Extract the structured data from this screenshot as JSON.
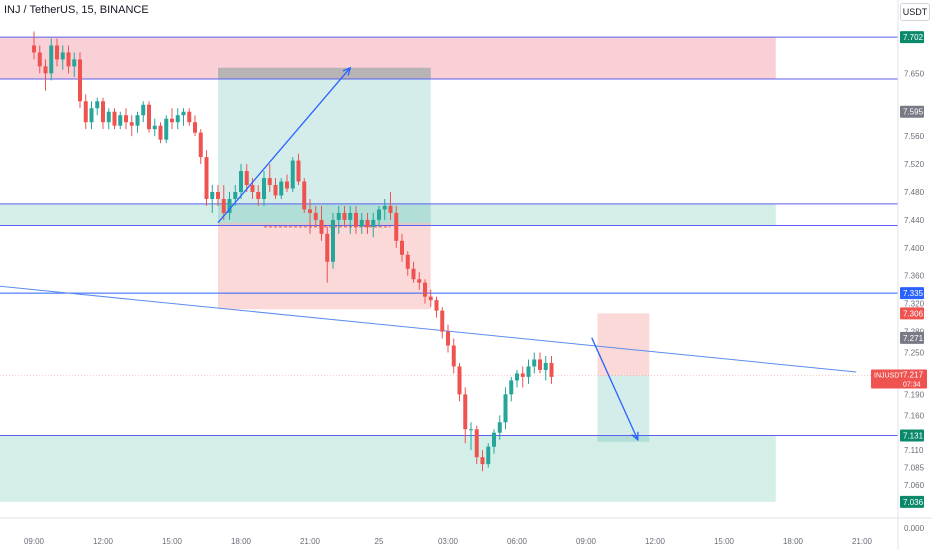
{
  "header": {
    "title": "INJ / TetherUS, 15, BINANCE",
    "currency_button": "USDT"
  },
  "colors": {
    "up": "#26a69a",
    "down": "#ef5350",
    "blue": "#2962ff",
    "supply_zone": "#f8d0d6",
    "demand_zone": "#d4eee8"
  },
  "chart_data": {
    "type": "candlestick",
    "symbol_label": "INJUSDT",
    "ylim": [
      7.03,
      7.715
    ],
    "y_ticks": [
      "7.650",
      "7.560",
      "7.520",
      "7.480",
      "7.440",
      "7.400",
      "7.360",
      "7.320",
      "7.280",
      "7.250",
      "7.190",
      "7.160",
      "7.110",
      "7.085",
      "7.060"
    ],
    "y_ticks_below": [
      "0.000",
      "0.000"
    ],
    "x_ticks": [
      {
        "label": "09:00",
        "time": 0
      },
      {
        "label": "12:00",
        "time": 12
      },
      {
        "label": "15:00",
        "time": 24
      },
      {
        "label": "18:00",
        "time": 36
      },
      {
        "label": "21:00",
        "time": 48
      },
      {
        "label": "25",
        "time": 60
      },
      {
        "label": "03:00",
        "time": 72
      },
      {
        "label": "06:00",
        "time": 84
      },
      {
        "label": "09:00",
        "time": 96
      },
      {
        "label": "12:00",
        "time": 108
      },
      {
        "label": "15:00",
        "time": 120
      },
      {
        "label": "18:00",
        "time": 132
      },
      {
        "label": "21:00",
        "time": 144
      }
    ],
    "price_labels": [
      {
        "text": "7.702",
        "value": 7.702,
        "color": "#0b8a6b"
      },
      {
        "text": "7.595",
        "value": 7.595,
        "color": "#787b86"
      },
      {
        "text": "7.335",
        "value": 7.335,
        "color": "#2962ff"
      },
      {
        "text": "7.306",
        "value": 7.306,
        "color": "#ef5350"
      },
      {
        "text": "7.271",
        "value": 7.271,
        "color": "#787b86"
      },
      {
        "text": "7.131",
        "value": 7.131,
        "color": "#0b8a6b"
      },
      {
        "text": "7.036",
        "value": 7.036,
        "color": "#0b8a6b"
      }
    ],
    "last_price": {
      "symbol": "INJUSDT",
      "price": "7.217",
      "countdown": "07:34",
      "value": 7.217
    },
    "horizontal_lines": [
      7.702,
      7.642,
      7.463,
      7.432,
      7.335,
      7.131
    ],
    "zones": [
      {
        "type": "supply",
        "t1": -6,
        "t2": 129,
        "top": 7.702,
        "bottom": 7.642
      },
      {
        "type": "demand",
        "t1": -6,
        "t2": 129,
        "top": 7.463,
        "bottom": 7.432
      },
      {
        "type": "demand",
        "t1": -6,
        "t2": 129,
        "top": 7.131,
        "bottom": 7.036
      }
    ],
    "positions": [
      {
        "kind": "long",
        "t1": 32,
        "t2": 69,
        "entry": 7.436,
        "stop": 7.312,
        "target": 7.658
      },
      {
        "kind": "short",
        "t1": 98,
        "t2": 107,
        "entry": 7.217,
        "stop": 7.306,
        "target": 7.122
      }
    ],
    "trendline": {
      "t1": -6,
      "p1": 7.345,
      "t2": 143,
      "p2": 7.222
    },
    "arrows": [
      {
        "t1": 32,
        "p1": 7.436,
        "t2": 55,
        "p2": 7.658
      },
      {
        "t1": 97,
        "p1": 7.271,
        "t2": 105,
        "p2": 7.125
      }
    ],
    "entry_dash": {
      "t1": 40,
      "t2": 62,
      "value": 7.43
    },
    "candles": [
      [
        7.69,
        7.71,
        7.67,
        7.68
      ],
      [
        7.68,
        7.69,
        7.65,
        7.66
      ],
      [
        7.66,
        7.67,
        7.625,
        7.65
      ],
      [
        7.65,
        7.7,
        7.64,
        7.69
      ],
      [
        7.69,
        7.7,
        7.66,
        7.67
      ],
      [
        7.67,
        7.69,
        7.655,
        7.68
      ],
      [
        7.68,
        7.69,
        7.65,
        7.66
      ],
      [
        7.66,
        7.68,
        7.645,
        7.67
      ],
      [
        7.67,
        7.68,
        7.6,
        7.61
      ],
      [
        7.61,
        7.62,
        7.57,
        7.58
      ],
      [
        7.58,
        7.61,
        7.57,
        7.6
      ],
      [
        7.6,
        7.615,
        7.59,
        7.61
      ],
      [
        7.61,
        7.615,
        7.57,
        7.58
      ],
      [
        7.58,
        7.6,
        7.57,
        7.595
      ],
      [
        7.595,
        7.6,
        7.57,
        7.575
      ],
      [
        7.575,
        7.595,
        7.57,
        7.59
      ],
      [
        7.59,
        7.6,
        7.57,
        7.58
      ],
      [
        7.58,
        7.59,
        7.56,
        7.575
      ],
      [
        7.575,
        7.595,
        7.565,
        7.59
      ],
      [
        7.59,
        7.61,
        7.58,
        7.605
      ],
      [
        7.605,
        7.61,
        7.565,
        7.57
      ],
      [
        7.57,
        7.585,
        7.56,
        7.575
      ],
      [
        7.575,
        7.58,
        7.55,
        7.555
      ],
      [
        7.555,
        7.59,
        7.55,
        7.585
      ],
      [
        7.585,
        7.6,
        7.57,
        7.58
      ],
      [
        7.58,
        7.6,
        7.57,
        7.59
      ],
      [
        7.59,
        7.6,
        7.575,
        7.595
      ],
      [
        7.595,
        7.6,
        7.575,
        7.58
      ],
      [
        7.58,
        7.59,
        7.56,
        7.565
      ],
      [
        7.565,
        7.57,
        7.52,
        7.53
      ],
      [
        7.53,
        7.54,
        7.46,
        7.47
      ],
      [
        7.47,
        7.49,
        7.45,
        7.48
      ],
      [
        7.48,
        7.49,
        7.46,
        7.47
      ],
      [
        7.47,
        7.49,
        7.44,
        7.45
      ],
      [
        7.45,
        7.48,
        7.44,
        7.47
      ],
      [
        7.47,
        7.49,
        7.46,
        7.48
      ],
      [
        7.48,
        7.52,
        7.47,
        7.51
      ],
      [
        7.51,
        7.52,
        7.48,
        7.49
      ],
      [
        7.49,
        7.5,
        7.47,
        7.48
      ],
      [
        7.48,
        7.49,
        7.46,
        7.47
      ],
      [
        7.47,
        7.51,
        7.46,
        7.5
      ],
      [
        7.5,
        7.52,
        7.48,
        7.49
      ],
      [
        7.49,
        7.5,
        7.47,
        7.475
      ],
      [
        7.475,
        7.5,
        7.47,
        7.495
      ],
      [
        7.495,
        7.505,
        7.48,
        7.485
      ],
      [
        7.485,
        7.53,
        7.48,
        7.525
      ],
      [
        7.525,
        7.535,
        7.49,
        7.495
      ],
      [
        7.495,
        7.5,
        7.45,
        7.455
      ],
      [
        7.455,
        7.47,
        7.42,
        7.45
      ],
      [
        7.45,
        7.46,
        7.43,
        7.44
      ],
      [
        7.44,
        7.46,
        7.41,
        7.42
      ],
      [
        7.42,
        7.43,
        7.35,
        7.38
      ],
      [
        7.38,
        7.45,
        7.37,
        7.44
      ],
      [
        7.44,
        7.46,
        7.42,
        7.45
      ],
      [
        7.45,
        7.46,
        7.43,
        7.44
      ],
      [
        7.44,
        7.46,
        7.42,
        7.45
      ],
      [
        7.45,
        7.46,
        7.42,
        7.43
      ],
      [
        7.43,
        7.45,
        7.42,
        7.44
      ],
      [
        7.44,
        7.45,
        7.42,
        7.43
      ],
      [
        7.43,
        7.45,
        7.415,
        7.44
      ],
      [
        7.44,
        7.46,
        7.43,
        7.455
      ],
      [
        7.455,
        7.47,
        7.44,
        7.46
      ],
      [
        7.46,
        7.48,
        7.44,
        7.45
      ],
      [
        7.45,
        7.46,
        7.4,
        7.41
      ],
      [
        7.41,
        7.42,
        7.38,
        7.39
      ],
      [
        7.39,
        7.395,
        7.36,
        7.37
      ],
      [
        7.37,
        7.38,
        7.35,
        7.355
      ],
      [
        7.355,
        7.365,
        7.34,
        7.35
      ],
      [
        7.35,
        7.355,
        7.32,
        7.33
      ],
      [
        7.33,
        7.34,
        7.315,
        7.325
      ],
      [
        7.325,
        7.33,
        7.3,
        7.31
      ],
      [
        7.31,
        7.315,
        7.27,
        7.28
      ],
      [
        7.28,
        7.29,
        7.25,
        7.26
      ],
      [
        7.26,
        7.27,
        7.22,
        7.23
      ],
      [
        7.23,
        7.235,
        7.18,
        7.19
      ],
      [
        7.19,
        7.2,
        7.12,
        7.14
      ],
      [
        7.14,
        7.15,
        7.11,
        7.14
      ],
      [
        7.14,
        7.145,
        7.09,
        7.1
      ],
      [
        7.1,
        7.11,
        7.08,
        7.09
      ],
      [
        7.09,
        7.12,
        7.085,
        7.115
      ],
      [
        7.115,
        7.14,
        7.105,
        7.135
      ],
      [
        7.135,
        7.16,
        7.125,
        7.15
      ],
      [
        7.15,
        7.2,
        7.14,
        7.19
      ],
      [
        7.19,
        7.215,
        7.18,
        7.21
      ],
      [
        7.21,
        7.225,
        7.2,
        7.22
      ],
      [
        7.22,
        7.23,
        7.2,
        7.215
      ],
      [
        7.215,
        7.24,
        7.205,
        7.23
      ],
      [
        7.23,
        7.25,
        7.22,
        7.24
      ],
      [
        7.24,
        7.25,
        7.22,
        7.225
      ],
      [
        7.225,
        7.245,
        7.21,
        7.235
      ],
      [
        7.235,
        7.245,
        7.205,
        7.215
      ]
    ]
  }
}
